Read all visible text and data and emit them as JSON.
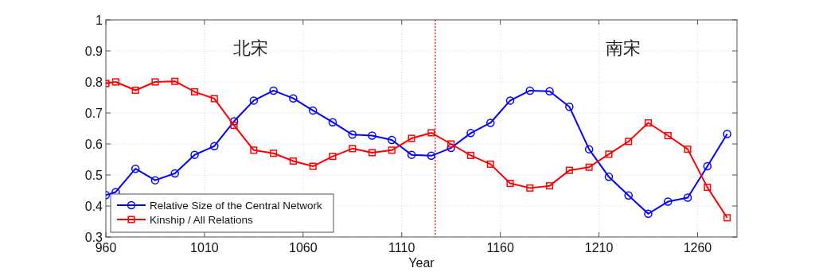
{
  "chart_data": {
    "type": "line",
    "xlabel": "Year",
    "annotations": [
      "北宋",
      "南宋"
    ],
    "x": [
      960,
      965,
      975,
      985,
      995,
      1005,
      1015,
      1025,
      1035,
      1045,
      1055,
      1065,
      1075,
      1085,
      1095,
      1105,
      1115,
      1125,
      1135,
      1145,
      1155,
      1165,
      1175,
      1185,
      1195,
      1205,
      1215,
      1225,
      1235,
      1245,
      1255,
      1265,
      1275
    ],
    "series": [
      {
        "name": "Relative Size of the Central Network",
        "color": "#0000ff",
        "marker": "circle",
        "values": [
          0.435,
          0.445,
          0.52,
          0.483,
          0.505,
          0.565,
          0.593,
          0.673,
          0.74,
          0.772,
          0.747,
          0.708,
          0.67,
          0.63,
          0.627,
          0.613,
          0.565,
          0.562,
          0.587,
          0.635,
          0.668,
          0.74,
          0.772,
          0.77,
          0.72,
          0.583,
          0.494,
          0.434,
          0.375,
          0.414,
          0.427,
          0.528,
          0.632
        ]
      },
      {
        "name": "Kinship / All Relations",
        "color": "#ff0000",
        "marker": "square",
        "values": [
          0.795,
          0.8,
          0.773,
          0.8,
          0.802,
          0.768,
          0.746,
          0.66,
          0.58,
          0.57,
          0.545,
          0.528,
          0.56,
          0.585,
          0.572,
          0.58,
          0.618,
          0.636,
          0.6,
          0.563,
          0.535,
          0.473,
          0.458,
          0.465,
          0.515,
          0.525,
          0.567,
          0.608,
          0.668,
          0.627,
          0.583,
          0.46,
          0.362
        ]
      }
    ],
    "xlim": [
      960,
      1280
    ],
    "xticks": [
      960,
      1010,
      1060,
      1110,
      1160,
      1210,
      1260
    ],
    "ylim": [
      0.3,
      1
    ],
    "yticks": [
      0.3,
      0.4,
      0.5,
      0.6,
      0.7,
      0.8,
      0.9,
      1
    ],
    "ref_lines": [
      {
        "axis": "x",
        "value": 1127,
        "color": "#ff0000",
        "line_style": "dotted"
      }
    ],
    "grid": true,
    "legend": "bottom left",
    "line_style": "solid"
  }
}
